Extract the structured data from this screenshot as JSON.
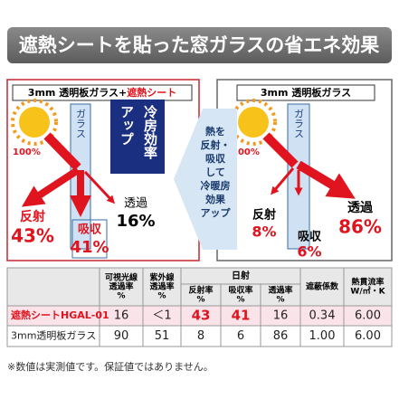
{
  "title": "遮熱シートを貼った窓ガラスの省エネ効果",
  "left_panel": {
    "header": "3mm 透明板ガラス+",
    "header_highlight": "遮熱シート",
    "glass": "ガラス",
    "badge": [
      "アップ",
      "冷房効率"
    ],
    "incident": "100%",
    "reflect": {
      "label": "反射",
      "value": "43%"
    },
    "absorb": {
      "label": "吸収",
      "value": "41%"
    },
    "transmit": {
      "label": "透過",
      "value": "16%"
    }
  },
  "center_arrow": {
    "lines": [
      "熱を",
      "反射・",
      "吸収",
      "して",
      "冷暖房",
      "効果",
      "アップ"
    ]
  },
  "right_panel": {
    "header": "3mm 透明板ガラス",
    "glass": "ガラス",
    "incident": "100%",
    "reflect": {
      "label": "反射",
      "value": "8%"
    },
    "absorb": {
      "label": "吸収",
      "value": "6%"
    },
    "transmit": {
      "label": "透過",
      "value": "86%"
    }
  },
  "table": {
    "columns": [
      [
        "可視光線",
        "透過率",
        "%"
      ],
      [
        "紫外線",
        "透過率",
        "%"
      ]
    ],
    "group": "日射",
    "group_columns": [
      [
        "反射率",
        "%"
      ],
      [
        "吸収率",
        "%"
      ],
      [
        "透過率",
        "%"
      ]
    ],
    "tail_columns": [
      [
        "遮蔽係数"
      ],
      [
        "熱貫流率",
        "W/㎡・K"
      ]
    ],
    "rows": [
      [
        "遮熱シートHGAL-01",
        "16",
        "＜1",
        "43",
        "41",
        "16",
        "0.34",
        "6.00"
      ],
      [
        "3mm透明板ガラス",
        "90",
        "51",
        "8",
        "6",
        "86",
        "1.00",
        "6.00"
      ]
    ]
  },
  "footnote": "※数値は実測値です。保証値ではありません。"
}
